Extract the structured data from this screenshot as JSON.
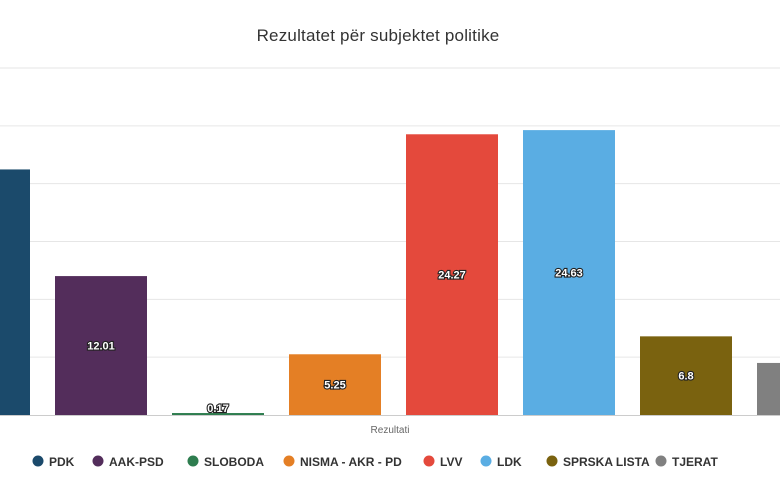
{
  "chart_data": {
    "type": "bar",
    "title": "Rezultatet për subjektet politike",
    "xlabel": "Rezultati",
    "ylabel": "",
    "ylim": [
      0,
      30
    ],
    "grid": true,
    "legend_position": "bottom",
    "categories": [
      "PDK",
      "AAK-PSD",
      "SLOBODA",
      "NISMA - AKR - PD",
      "LVV",
      "LDK",
      "SPRSKA LISTA",
      "TJERAT"
    ],
    "values": [
      21.23,
      12.01,
      0.17,
      5.25,
      24.27,
      24.63,
      6.8,
      4.5
    ],
    "data_labels": [
      "21.23",
      "12.01",
      "0.17",
      "5.25",
      "24.27",
      "24.63",
      "6.8",
      "4.5"
    ],
    "colors": [
      "#1b4a6b",
      "#532d5b",
      "#2e7d4f",
      "#e47f25",
      "#e4493c",
      "#5aade3",
      "#7a620f",
      "#808080"
    ]
  }
}
